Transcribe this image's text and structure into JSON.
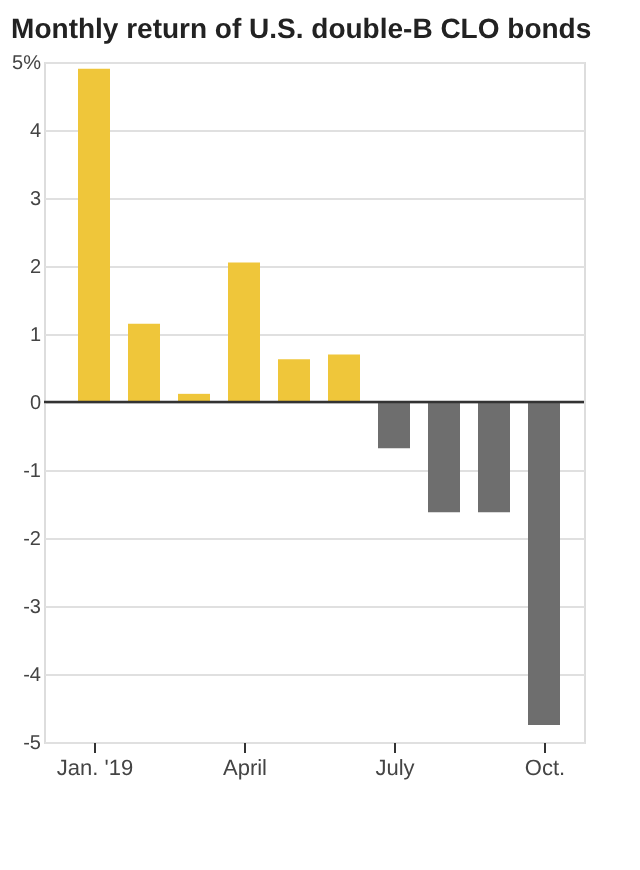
{
  "chart_data": {
    "type": "bar",
    "title": "Monthly return of U.S. double-B CLO bonds",
    "categories": [
      "Jan. '19",
      null,
      null,
      "April",
      null,
      null,
      "July",
      null,
      null,
      "Oct."
    ],
    "values": [
      4.9,
      1.15,
      0.12,
      2.05,
      0.63,
      0.7,
      -0.68,
      -1.62,
      -1.62,
      -4.75
    ],
    "colors": [
      "#efc63a",
      "#efc63a",
      "#efc63a",
      "#efc63a",
      "#efc63a",
      "#efc63a",
      "#6e6e6e",
      "#6e6e6e",
      "#6e6e6e",
      "#6e6e6e"
    ],
    "ylim": [
      -5,
      5
    ],
    "yticks": [
      {
        "value": 5,
        "label": "5%"
      },
      4,
      3,
      2,
      1,
      0,
      -1,
      -2,
      -3,
      -4,
      -5
    ],
    "ref_lines": [
      {
        "axis": "y",
        "value": 0,
        "color": "#333333"
      }
    ],
    "grid": "y"
  }
}
